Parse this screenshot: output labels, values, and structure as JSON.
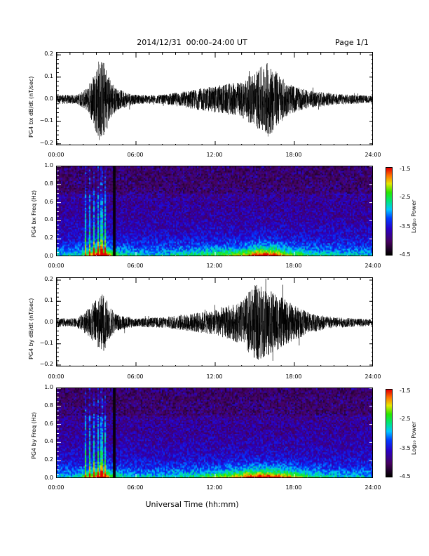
{
  "header": {
    "title": "2014/12/31  00:00–24:00 UT",
    "page": "Page 1/1"
  },
  "x_axis": {
    "title": "Universal Time (hh:mm)",
    "ticks": [
      "00:00",
      "06:00",
      "12:00",
      "18:00",
      "24:00"
    ]
  },
  "chart_data": [
    {
      "type": "line",
      "title": "",
      "ylabel": "PG4 bx dB/dt (nT/sec)",
      "xlabel": "",
      "x_range_hours": [
        0,
        24
      ],
      "ylim": [
        -0.21,
        0.21
      ],
      "y_ticks": [
        "0.2",
        "0.1",
        "0.0",
        "−0.1",
        "−0.2"
      ],
      "envelope": [
        [
          0,
          0.02
        ],
        [
          1.5,
          0.02
        ],
        [
          2.3,
          0.05
        ],
        [
          2.8,
          0.12
        ],
        [
          3.2,
          0.19
        ],
        [
          3.6,
          0.17
        ],
        [
          4.0,
          0.1
        ],
        [
          4.5,
          0.05
        ],
        [
          6,
          0.02
        ],
        [
          8,
          0.02
        ],
        [
          10,
          0.04
        ],
        [
          12,
          0.06
        ],
        [
          14,
          0.08
        ],
        [
          16,
          0.17
        ],
        [
          17.5,
          0.07
        ],
        [
          19,
          0.04
        ],
        [
          21,
          0.025
        ],
        [
          24,
          0.015
        ]
      ]
    },
    {
      "type": "heatmap",
      "title": "",
      "ylabel": "PG4 bx Freq (Hz)",
      "xlabel": "",
      "x_range_hours": [
        0,
        24
      ],
      "ylim": [
        0,
        1.0
      ],
      "y_ticks": [
        "1.0",
        "0.8",
        "0.6",
        "0.4",
        "0.2",
        "0.0"
      ],
      "colorbar": {
        "label": "Log₁₀ Power",
        "range": [
          -4.5,
          -1.5
        ],
        "ticks": [
          "-1.5",
          "-2.5",
          "-3.5",
          "-4.5"
        ]
      }
    },
    {
      "type": "line",
      "title": "",
      "ylabel": "PG4 by dB/dt (nT/sec)",
      "xlabel": "",
      "x_range_hours": [
        0,
        24
      ],
      "ylim": [
        -0.21,
        0.21
      ],
      "y_ticks": [
        "0.2",
        "0.1",
        "0.0",
        "−0.1",
        "−0.2"
      ],
      "envelope": [
        [
          0,
          0.02
        ],
        [
          1.5,
          0.02
        ],
        [
          2.3,
          0.06
        ],
        [
          2.8,
          0.1
        ],
        [
          3.5,
          0.14
        ],
        [
          4.0,
          0.08
        ],
        [
          4.5,
          0.04
        ],
        [
          6,
          0.02
        ],
        [
          8,
          0.025
        ],
        [
          10,
          0.04
        ],
        [
          12,
          0.06
        ],
        [
          14,
          0.1
        ],
        [
          15,
          0.18
        ],
        [
          16,
          0.16
        ],
        [
          17.5,
          0.1
        ],
        [
          19,
          0.05
        ],
        [
          21,
          0.025
        ],
        [
          24,
          0.015
        ]
      ]
    },
    {
      "type": "heatmap",
      "title": "",
      "ylabel": "PG4 by Freq (Hz)",
      "xlabel": "",
      "x_range_hours": [
        0,
        24
      ],
      "ylim": [
        0,
        1.0
      ],
      "y_ticks": [
        "1.0",
        "0.8",
        "0.6",
        "0.4",
        "0.2",
        "0.0"
      ],
      "colorbar": {
        "label": "Log₁₀ Power",
        "range": [
          -4.5,
          -1.5
        ],
        "ticks": [
          "-1.5",
          "-2.5",
          "-3.5",
          "-4.5"
        ]
      }
    }
  ]
}
